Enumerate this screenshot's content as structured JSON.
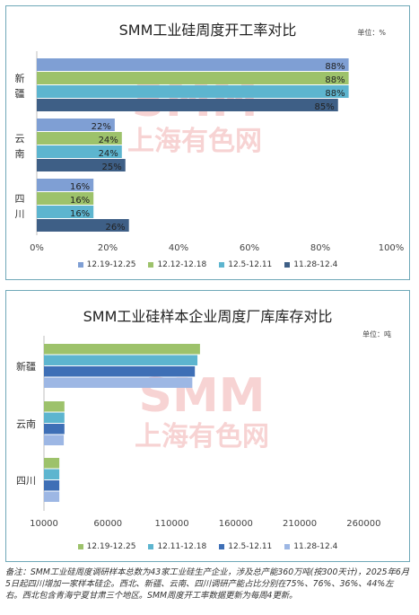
{
  "colors": {
    "series": [
      "#7f9fd4",
      "#9dc26b",
      "#5db5cf",
      "#3e5f86"
    ],
    "border": "#6fa8b8",
    "watermark": "#f2b6b6"
  },
  "watermark": {
    "brand": "SMM",
    "cn": "上海有色网"
  },
  "charts": [
    {
      "title": "SMM工业硅周度开工率对比",
      "unit": "单位：%",
      "legend": [
        "12.19-12.25",
        "12.12-12.18",
        "12.5-12.11",
        "11.28-12.4"
      ]
    },
    {
      "title": "SMM工业硅样本企业周度厂库库存对比",
      "unit": "单位：吨",
      "legend": [
        "12.19-12.25",
        "12.11-12.18",
        "12.5-12.11",
        "11.28-12.4"
      ]
    }
  ],
  "chart_data": [
    {
      "type": "bar",
      "orientation": "horizontal",
      "title": "SMM工业硅周度开工率对比",
      "categories": [
        "新疆",
        "云南",
        "四川"
      ],
      "series": [
        {
          "name": "12.19-12.25",
          "values": [
            88,
            22,
            16
          ],
          "labels": [
            "88%",
            "22%",
            "16%"
          ]
        },
        {
          "name": "12.12-12.18",
          "values": [
            88,
            24,
            16
          ],
          "labels": [
            "88%",
            "24%",
            "16%"
          ]
        },
        {
          "name": "12.5-12.11",
          "values": [
            88,
            24,
            16
          ],
          "labels": [
            "88%",
            "24%",
            "16%"
          ]
        },
        {
          "name": "11.28-12.4",
          "values": [
            85,
            25,
            26
          ],
          "labels": [
            "85%",
            "25%",
            "26%"
          ]
        }
      ],
      "xlim": [
        0,
        100
      ],
      "ticks": [
        "0%",
        "20%",
        "40%",
        "60%",
        "80%",
        "100%"
      ],
      "tick_values": [
        0,
        20,
        40,
        60,
        80,
        100
      ],
      "grid": false,
      "legend_position": "bottom"
    },
    {
      "type": "bar",
      "orientation": "horizontal",
      "title": "SMM工业硅样本企业周度厂库库存对比",
      "categories": [
        "新疆",
        "云南",
        "四川"
      ],
      "series": [
        {
          "name": "12.19-12.25",
          "values": [
            132000,
            26000,
            22000
          ]
        },
        {
          "name": "12.11-12.18",
          "values": [
            130000,
            26000,
            22000
          ]
        },
        {
          "name": "12.5-12.11",
          "values": [
            128000,
            26000,
            22000
          ]
        },
        {
          "name": "11.28-12.4",
          "values": [
            126000,
            25500,
            22000
          ]
        }
      ],
      "xlim": [
        10000,
        285000
      ],
      "ticks": [
        "10000",
        "60000",
        "110000",
        "160000",
        "210000",
        "260000"
      ],
      "tick_values": [
        10000,
        60000,
        110000,
        160000,
        210000,
        260000
      ],
      "grid": false,
      "legend_position": "bottom"
    }
  ],
  "note": "备注：SMM工业硅周度调研样本总数为43家工业硅生产企业，涉及总产能360万吨(按300天计)，2025年6月5日起四川增加一家样本硅企。西北、新疆、云南、四川调研产能占比分别在75%、76%、36%、44%左右。西北包含青海宁夏甘肃三个地区。SMM周度开工率数据更新为每周4更新。"
}
